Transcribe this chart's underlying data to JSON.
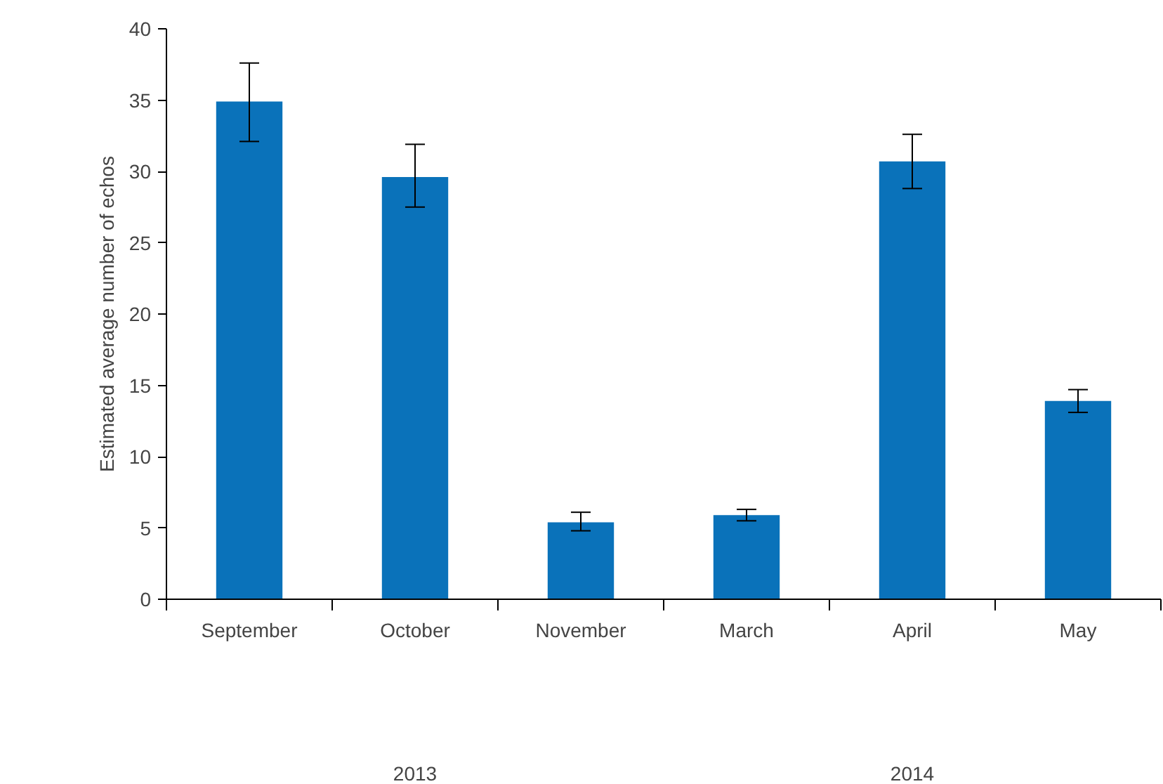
{
  "chart_data": {
    "type": "bar",
    "ylabel": "Estimated average number of echos",
    "categories": [
      "September",
      "October",
      "November",
      "March",
      "April",
      "May"
    ],
    "values": [
      34.9,
      29.6,
      5.4,
      5.9,
      30.7,
      13.9
    ],
    "errors": [
      [
        32.1,
        37.6
      ],
      [
        27.5,
        31.9
      ],
      [
        4.8,
        6.1
      ],
      [
        5.5,
        6.3
      ],
      [
        28.8,
        32.6
      ],
      [
        13.1,
        14.7
      ]
    ],
    "color": "#0a72ba",
    "ylim": [
      0,
      40
    ],
    "yticks": [
      0,
      5,
      10,
      15,
      20,
      25,
      30,
      35,
      40
    ],
    "grid": false,
    "annotations": [
      "2013",
      "2014"
    ]
  }
}
